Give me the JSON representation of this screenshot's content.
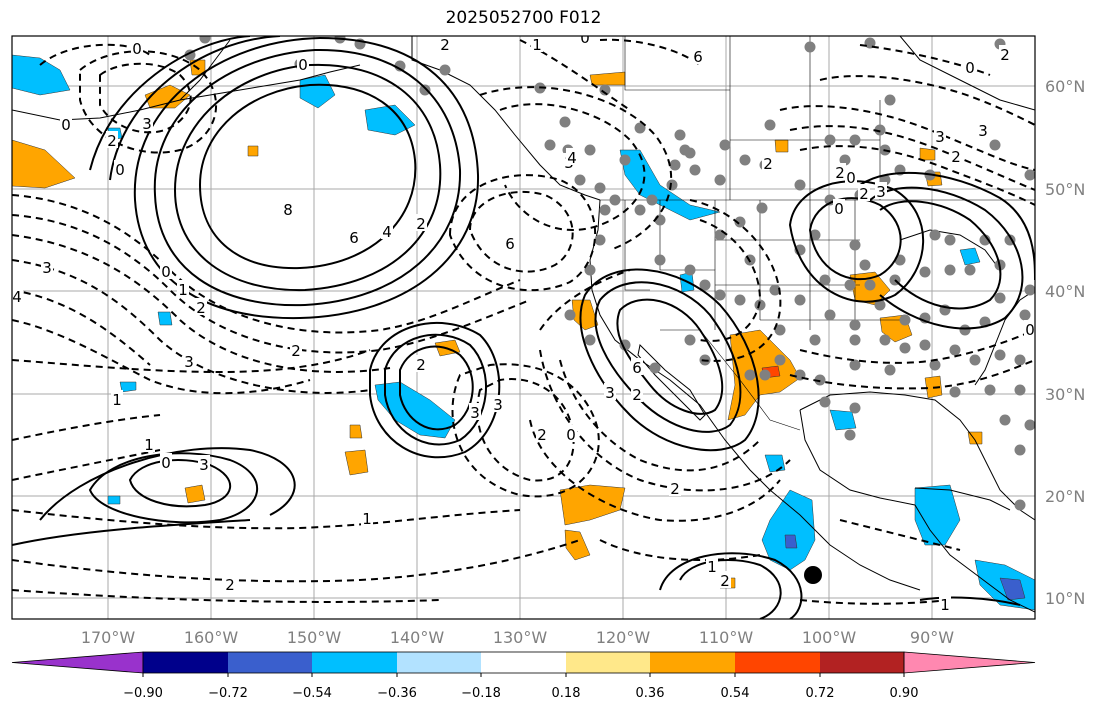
{
  "title": "2025052700 F012",
  "lat_labels": [
    "60°N",
    "50°N",
    "40°N",
    "30°N",
    "20°N",
    "10°N"
  ],
  "lon_labels": [
    "170°W",
    "160°W",
    "150°W",
    "140°W",
    "130°W",
    "120°W",
    "110°W",
    "100°W",
    "90°W"
  ],
  "colorbar": {
    "colors": [
      "#9932cc",
      "#00008b",
      "#3a5fcd",
      "#00bfff",
      "#b2e2ff",
      "#ffffff",
      "#ffe88a",
      "#ffa500",
      "#ff4500",
      "#b22222",
      "#ff88b0"
    ],
    "labels": [
      "−0.90",
      "−0.72",
      "−0.54",
      "−0.36",
      "−0.18",
      "0.18",
      "0.36",
      "0.54",
      "0.72",
      "0.90"
    ]
  },
  "contour_labels": [
    "0",
    "3",
    "0",
    "2",
    "0",
    "0",
    "2",
    "6",
    "3",
    "8",
    "6",
    "4",
    "2",
    "0",
    "1",
    "2",
    "3",
    "4",
    "3",
    "2",
    "1",
    "2",
    "3",
    "3",
    "2",
    "0",
    "6",
    "3",
    "2",
    "2",
    "1",
    "6",
    "4",
    "3",
    "3",
    "2",
    "0",
    "3",
    "0",
    "2",
    "2",
    "1",
    "3",
    "0",
    "2",
    "1",
    "2",
    "1",
    "2",
    "0",
    "1",
    "0",
    "2",
    "0"
  ],
  "markers": {
    "dot_color": "#808080",
    "large_dot_color": "#000000"
  }
}
